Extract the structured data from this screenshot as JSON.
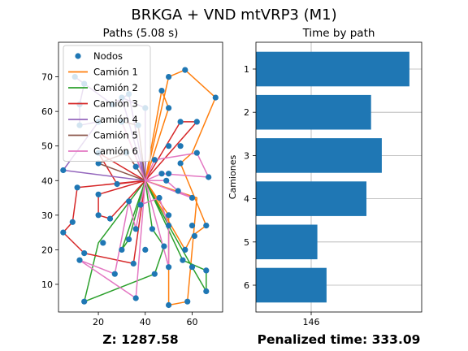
{
  "figure": {
    "title": "BRKGA + VND mtVRP3 (M1)"
  },
  "chart_data": [
    {
      "type": "scatter",
      "title": "Paths (5.08 s)",
      "xlabel": "",
      "ylabel": "",
      "xlim": [
        3,
        73
      ],
      "ylim": [
        2,
        80
      ],
      "xticks": [
        20,
        40,
        60
      ],
      "yticks": [
        10,
        20,
        30,
        40,
        50,
        60,
        70
      ],
      "footer": "Z: 1287.58",
      "depot": [
        40,
        40
      ],
      "nodes_series": {
        "name": "Nodos",
        "color": "#1f77b4",
        "points": [
          [
            10,
            70
          ],
          [
            14,
            68
          ],
          [
            50,
            70
          ],
          [
            57,
            72
          ],
          [
            47,
            66
          ],
          [
            70,
            64
          ],
          [
            12,
            62
          ],
          [
            26,
            62
          ],
          [
            30,
            64
          ],
          [
            33,
            65
          ],
          [
            40,
            61
          ],
          [
            50,
            61
          ],
          [
            55,
            57
          ],
          [
            62,
            57
          ],
          [
            12,
            56
          ],
          [
            20,
            57
          ],
          [
            30,
            57
          ],
          [
            37,
            56
          ],
          [
            50,
            50
          ],
          [
            55,
            50
          ],
          [
            20,
            48
          ],
          [
            32,
            48
          ],
          [
            44,
            46
          ],
          [
            62,
            48
          ],
          [
            20,
            45
          ],
          [
            36,
            44
          ],
          [
            47,
            42
          ],
          [
            50,
            42
          ],
          [
            55,
            45
          ],
          [
            5,
            43
          ],
          [
            28,
            39
          ],
          [
            49,
            40
          ],
          [
            54,
            37
          ],
          [
            60,
            35
          ],
          [
            67,
            41
          ],
          [
            11,
            38
          ],
          [
            20,
            36
          ],
          [
            33,
            34
          ],
          [
            38,
            33
          ],
          [
            46,
            35
          ],
          [
            20,
            30
          ],
          [
            25,
            29
          ],
          [
            43,
            26
          ],
          [
            36,
            26
          ],
          [
            50,
            30
          ],
          [
            50,
            27
          ],
          [
            60,
            27
          ],
          [
            61,
            24
          ],
          [
            9,
            28
          ],
          [
            5,
            25
          ],
          [
            22,
            22
          ],
          [
            14,
            19
          ],
          [
            30,
            20
          ],
          [
            33,
            23
          ],
          [
            40,
            20
          ],
          [
            48,
            21
          ],
          [
            57,
            20
          ],
          [
            56,
            17
          ],
          [
            66,
            27
          ],
          [
            12,
            17
          ],
          [
            27,
            13
          ],
          [
            35,
            16
          ],
          [
            44,
            13
          ],
          [
            50,
            15
          ],
          [
            60,
            15
          ],
          [
            66,
            14
          ],
          [
            14,
            5
          ],
          [
            36,
            6
          ],
          [
            50,
            4
          ],
          [
            58,
            5
          ],
          [
            66,
            8
          ]
        ]
      },
      "routes": [
        {
          "name": "Camión 1",
          "color": "#ff7f0e",
          "path": [
            [
              40,
              40
            ],
            [
              50,
              70
            ],
            [
              57,
              72
            ],
            [
              70,
              64
            ],
            [
              60,
              48
            ],
            [
              55,
              45
            ],
            [
              66,
              27
            ],
            [
              60,
              24
            ],
            [
              57,
              20
            ],
            [
              40,
              40
            ],
            [
              47,
              66
            ],
            [
              50,
              61
            ],
            [
              40,
              40
            ],
            [
              62,
              35
            ],
            [
              58,
              5
            ],
            [
              50,
              4
            ],
            [
              50,
              30
            ],
            [
              40,
              40
            ]
          ]
        },
        {
          "name": "Camión 2",
          "color": "#2ca02c",
          "path": [
            [
              40,
              40
            ],
            [
              20,
              22
            ],
            [
              14,
              5
            ],
            [
              44,
              13
            ],
            [
              48,
              21
            ],
            [
              43,
              26
            ],
            [
              40,
              40
            ],
            [
              56,
              17
            ],
            [
              66,
              14
            ],
            [
              66,
              8
            ],
            [
              60,
              15
            ],
            [
              50,
              27
            ],
            [
              40,
              40
            ],
            [
              30,
              20
            ],
            [
              33,
              23
            ],
            [
              40,
              40
            ]
          ]
        },
        {
          "name": "Camión 3",
          "color": "#d62728",
          "path": [
            [
              40,
              40
            ],
            [
              62,
              57
            ],
            [
              55,
              57
            ],
            [
              40,
              40
            ],
            [
              20,
              36
            ],
            [
              20,
              30
            ],
            [
              25,
              29
            ],
            [
              40,
              40
            ],
            [
              11,
              38
            ],
            [
              9,
              28
            ],
            [
              5,
              25
            ],
            [
              14,
              19
            ],
            [
              35,
              16
            ],
            [
              40,
              40
            ],
            [
              20,
              48
            ],
            [
              28,
              39
            ],
            [
              40,
              40
            ]
          ]
        },
        {
          "name": "Camión 4",
          "color": "#9467bd",
          "path": [
            [
              40,
              40
            ],
            [
              33,
              65
            ],
            [
              26,
              62
            ],
            [
              10,
              70
            ],
            [
              14,
              68
            ],
            [
              12,
              62
            ],
            [
              12,
              56
            ],
            [
              20,
              57
            ],
            [
              5,
              43
            ],
            [
              40,
              40
            ],
            [
              30,
              64
            ],
            [
              40,
              61
            ],
            [
              40,
              40
            ]
          ]
        },
        {
          "name": "Camión 5",
          "color": "#8c564b",
          "path": [
            [
              40,
              40
            ],
            [
              30,
              57
            ],
            [
              37,
              56
            ],
            [
              40,
              40
            ],
            [
              32,
              48
            ],
            [
              20,
              45
            ],
            [
              40,
              40
            ],
            [
              36,
              44
            ],
            [
              40,
              40
            ]
          ]
        },
        {
          "name": "Camión 6",
          "color": "#e377c2",
          "path": [
            [
              40,
              40
            ],
            [
              44,
              46
            ],
            [
              62,
              48
            ],
            [
              67,
              41
            ],
            [
              47,
              42
            ],
            [
              40,
              40
            ],
            [
              49,
              40
            ],
            [
              54,
              37
            ],
            [
              60,
              35
            ],
            [
              40,
              40
            ],
            [
              38,
              33
            ],
            [
              46,
              35
            ],
            [
              50,
              27
            ],
            [
              50,
              15
            ],
            [
              40,
              40
            ],
            [
              36,
              26
            ],
            [
              33,
              34
            ],
            [
              27,
              13
            ],
            [
              12,
              17
            ],
            [
              36,
              6
            ],
            [
              40,
              40
            ],
            [
              30,
              57
            ],
            [
              40,
              40
            ]
          ]
        }
      ],
      "legend": {
        "placement": "upper-left"
      }
    },
    {
      "type": "bar",
      "orientation": "horizontal",
      "title": "Time by path",
      "ylabel": "Camiones",
      "xlabel": "",
      "categories": [
        "1",
        "2",
        "3",
        "4",
        "5",
        "6"
      ],
      "values": [
        210,
        185,
        192,
        182,
        150,
        156
      ],
      "xlim": [
        110,
        218
      ],
      "xticks": [
        146
      ],
      "color": "#1f77b4",
      "grid": true,
      "footer": "Penalized time: 333.09"
    }
  ]
}
